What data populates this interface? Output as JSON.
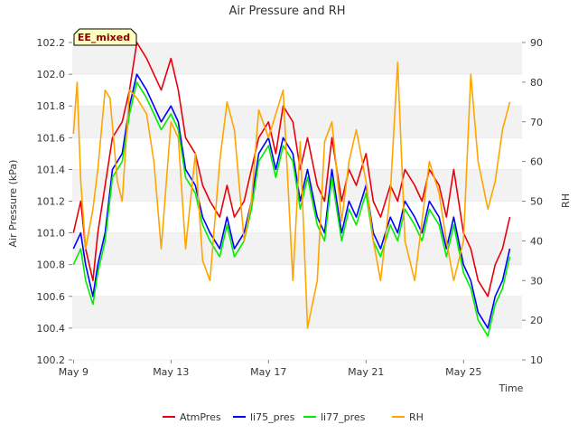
{
  "chart_data": {
    "type": "line",
    "title": "Air Pressure and RH",
    "xlabel": "Time",
    "ylabel": "Air Pressure (kPa)",
    "y2label": "RH",
    "annotation": "EE_mixed",
    "x_ticks": [
      "May 9",
      "May 13",
      "May 17",
      "May 21",
      "May 25"
    ],
    "x_tick_days": [
      9,
      13,
      17,
      21,
      25
    ],
    "xlim_days": [
      8.95,
      27.4
    ],
    "ylim": [
      100.2,
      102.2
    ],
    "y_ticks": [
      "100.2",
      "100.4",
      "100.6",
      "100.8",
      "101.0",
      "101.2",
      "101.4",
      "101.6",
      "101.8",
      "102.0",
      "102.2"
    ],
    "y2lim": [
      10,
      90
    ],
    "y2_ticks": [
      "10",
      "20",
      "30",
      "40",
      "50",
      "60",
      "70",
      "80",
      "90"
    ],
    "grid": "horizontal bands",
    "legend_position": "bottom",
    "series": [
      {
        "name": "AtmPres",
        "color": "#e8000b",
        "axis": "left",
        "x": [
          9.0,
          9.3,
          9.5,
          9.8,
          10.0,
          10.3,
          10.6,
          11.0,
          11.3,
          11.6,
          12.0,
          12.3,
          12.6,
          13.0,
          13.3,
          13.6,
          14.0,
          14.3,
          14.6,
          15.0,
          15.3,
          15.6,
          16.0,
          16.3,
          16.6,
          17.0,
          17.3,
          17.6,
          18.0,
          18.3,
          18.6,
          19.0,
          19.3,
          19.6,
          20.0,
          20.3,
          20.6,
          21.0,
          21.3,
          21.6,
          22.0,
          22.3,
          22.6,
          23.0,
          23.3,
          23.6,
          24.0,
          24.3,
          24.6,
          25.0,
          25.3,
          25.6,
          26.0,
          26.3,
          26.6,
          26.9
        ],
        "values": [
          101.0,
          101.2,
          100.9,
          100.7,
          101.0,
          101.3,
          101.6,
          101.7,
          101.9,
          102.2,
          102.1,
          102.0,
          101.9,
          102.1,
          101.9,
          101.6,
          101.5,
          101.3,
          101.2,
          101.1,
          101.3,
          101.1,
          101.2,
          101.4,
          101.6,
          101.7,
          101.5,
          101.8,
          101.7,
          101.4,
          101.6,
          101.3,
          101.2,
          101.6,
          101.2,
          101.4,
          101.3,
          101.5,
          101.2,
          101.1,
          101.3,
          101.2,
          101.4,
          101.3,
          101.2,
          101.4,
          101.3,
          101.1,
          101.4,
          101.0,
          100.9,
          100.7,
          100.6,
          100.8,
          100.9,
          101.1
        ]
      },
      {
        "name": "li75_pres",
        "color": "#0000ff",
        "axis": "left",
        "x": [
          9.0,
          9.3,
          9.5,
          9.8,
          10.0,
          10.3,
          10.6,
          11.0,
          11.3,
          11.6,
          12.0,
          12.3,
          12.6,
          13.0,
          13.3,
          13.6,
          14.0,
          14.3,
          14.6,
          15.0,
          15.3,
          15.6,
          16.0,
          16.3,
          16.6,
          17.0,
          17.3,
          17.6,
          18.0,
          18.3,
          18.6,
          19.0,
          19.3,
          19.6,
          20.0,
          20.3,
          20.6,
          21.0,
          21.3,
          21.6,
          22.0,
          22.3,
          22.6,
          23.0,
          23.3,
          23.6,
          24.0,
          24.3,
          24.6,
          25.0,
          25.3,
          25.6,
          26.0,
          26.3,
          26.6,
          26.9
        ],
        "values": [
          100.9,
          101.0,
          100.8,
          100.6,
          100.8,
          101.0,
          101.4,
          101.5,
          101.8,
          102.0,
          101.9,
          101.8,
          101.7,
          101.8,
          101.7,
          101.4,
          101.3,
          101.1,
          101.0,
          100.9,
          101.1,
          100.9,
          101.0,
          101.2,
          101.5,
          101.6,
          101.4,
          101.6,
          101.5,
          101.2,
          101.4,
          101.1,
          101.0,
          101.4,
          101.0,
          101.2,
          101.1,
          101.3,
          101.0,
          100.9,
          101.1,
          101.0,
          101.2,
          101.1,
          101.0,
          101.2,
          101.1,
          100.9,
          101.1,
          100.8,
          100.7,
          100.5,
          100.4,
          100.6,
          100.7,
          100.9
        ]
      },
      {
        "name": "li77_pres",
        "color": "#00ee00",
        "axis": "left",
        "x": [
          9.0,
          9.3,
          9.5,
          9.8,
          10.0,
          10.3,
          10.6,
          11.0,
          11.3,
          11.6,
          12.0,
          12.3,
          12.6,
          13.0,
          13.3,
          13.6,
          14.0,
          14.3,
          14.6,
          15.0,
          15.3,
          15.6,
          16.0,
          16.3,
          16.6,
          17.0,
          17.3,
          17.6,
          18.0,
          18.3,
          18.6,
          19.0,
          19.3,
          19.6,
          20.0,
          20.3,
          20.6,
          21.0,
          21.3,
          21.6,
          22.0,
          22.3,
          22.6,
          23.0,
          23.3,
          23.6,
          24.0,
          24.3,
          24.6,
          25.0,
          25.3,
          25.6,
          26.0,
          26.3,
          26.6,
          26.9
        ],
        "values": [
          100.8,
          100.9,
          100.7,
          100.55,
          100.75,
          100.95,
          101.35,
          101.45,
          101.75,
          101.95,
          101.85,
          101.75,
          101.65,
          101.75,
          101.65,
          101.35,
          101.25,
          101.05,
          100.95,
          100.85,
          101.05,
          100.85,
          100.95,
          101.15,
          101.45,
          101.55,
          101.35,
          101.55,
          101.45,
          101.15,
          101.35,
          101.05,
          100.95,
          101.35,
          100.95,
          101.15,
          101.05,
          101.25,
          100.95,
          100.85,
          101.05,
          100.95,
          101.15,
          101.05,
          100.95,
          101.15,
          101.05,
          100.85,
          101.05,
          100.75,
          100.65,
          100.45,
          100.35,
          100.55,
          100.65,
          100.85
        ]
      },
      {
        "name": "RH",
        "color": "#ffa500",
        "axis": "right",
        "x": [
          9.0,
          9.15,
          9.3,
          9.5,
          9.8,
          10.0,
          10.3,
          10.5,
          10.8,
          11.0,
          11.3,
          11.6,
          12.0,
          12.3,
          12.6,
          13.0,
          13.3,
          13.6,
          14.0,
          14.3,
          14.6,
          15.0,
          15.3,
          15.6,
          16.0,
          16.3,
          16.6,
          17.0,
          17.3,
          17.6,
          18.0,
          18.3,
          18.6,
          19.0,
          19.3,
          19.6,
          20.0,
          20.3,
          20.6,
          21.0,
          21.3,
          21.6,
          22.0,
          22.3,
          22.6,
          23.0,
          23.3,
          23.6,
          24.0,
          24.3,
          24.6,
          25.0,
          25.3,
          25.6,
          26.0,
          26.3,
          26.6,
          26.9
        ],
        "values": [
          67,
          80,
          55,
          38,
          48,
          58,
          78,
          76,
          55,
          50,
          78,
          76,
          72,
          60,
          38,
          70,
          66,
          38,
          62,
          35,
          30,
          60,
          75,
          68,
          40,
          50,
          73,
          66,
          72,
          78,
          30,
          65,
          18,
          30,
          65,
          70,
          45,
          60,
          68,
          55,
          40,
          30,
          52,
          85,
          40,
          30,
          45,
          60,
          52,
          40,
          30,
          40,
          82,
          60,
          48,
          55,
          68,
          75
        ]
      }
    ]
  }
}
